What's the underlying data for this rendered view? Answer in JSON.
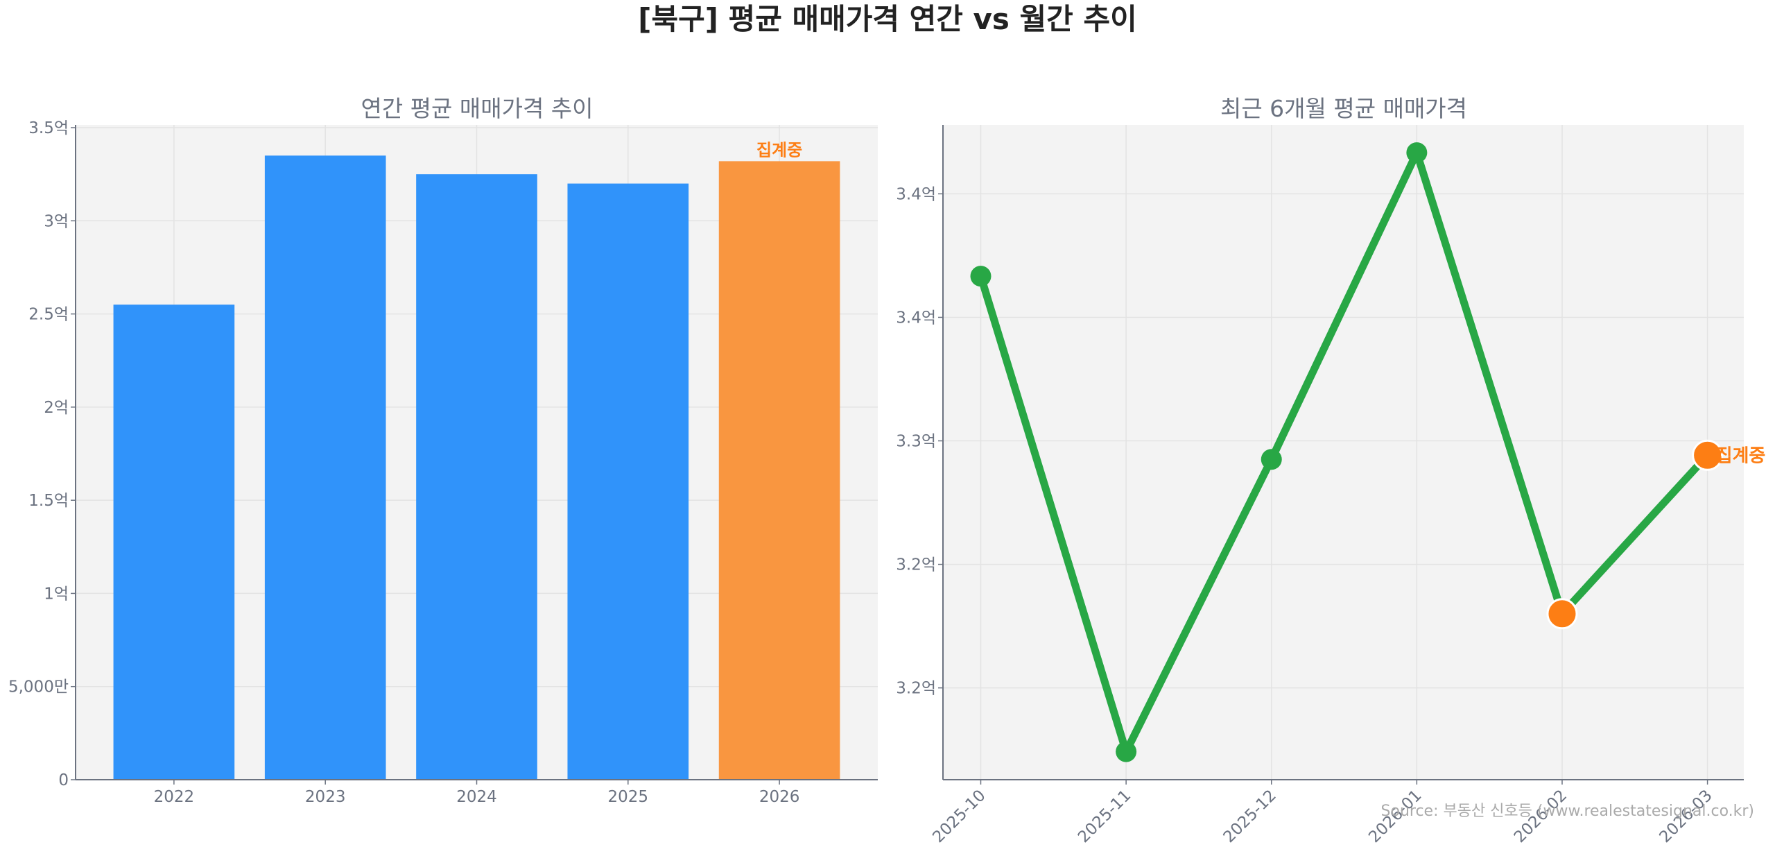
{
  "title": "[북구] 평균 매매가격 연간 vs 월간 추이",
  "source": "Source: 부동산 신호등 (www.realestatesignal.co.kr)",
  "colors": {
    "bar": "#3093fa",
    "bar_partial": "#f99640",
    "line": "#28a745",
    "partial_marker": "#fd7e14",
    "partial_label": "#fd7e14",
    "plot_bg": "#f3f3f3"
  },
  "chart_data": [
    {
      "type": "bar",
      "title": "연간 평균 매매가격 추이",
      "categories": [
        "2022",
        "2023",
        "2024",
        "2025",
        "2026"
      ],
      "values": [
        2.55,
        3.35,
        3.25,
        3.2,
        3.32
      ],
      "unit": "억",
      "partial_label": "집계중",
      "partial_index": 4,
      "ylim": [
        0,
        3.515
      ],
      "yticks": [
        0,
        0.5,
        1,
        1.5,
        2,
        2.5,
        3,
        3.5
      ],
      "ytick_labels": [
        "0",
        "5,000만",
        "1억",
        "1.5억",
        "2억",
        "2.5억",
        "3억",
        "3.5억"
      ],
      "grid": true
    },
    {
      "type": "line",
      "title": "최근 6개월 평균 매매가격",
      "categories": [
        "2025-10",
        "2025-11",
        "2025-12",
        "2026-01",
        "2026-02",
        "2026-03"
      ],
      "values": [
        3.38,
        3.149,
        3.291,
        3.44,
        3.216,
        3.293
      ],
      "unit": "억",
      "partial_indices": [
        4,
        5
      ],
      "partial_label": "집계중",
      "ylim": [
        3.1354,
        3.4535
      ],
      "yticks": [
        3.18,
        3.24,
        3.3,
        3.36,
        3.42
      ],
      "ytick_labels": [
        "3.2억",
        "3.2억",
        "3.3억",
        "3.4억",
        "3.4억"
      ],
      "grid": true
    }
  ]
}
